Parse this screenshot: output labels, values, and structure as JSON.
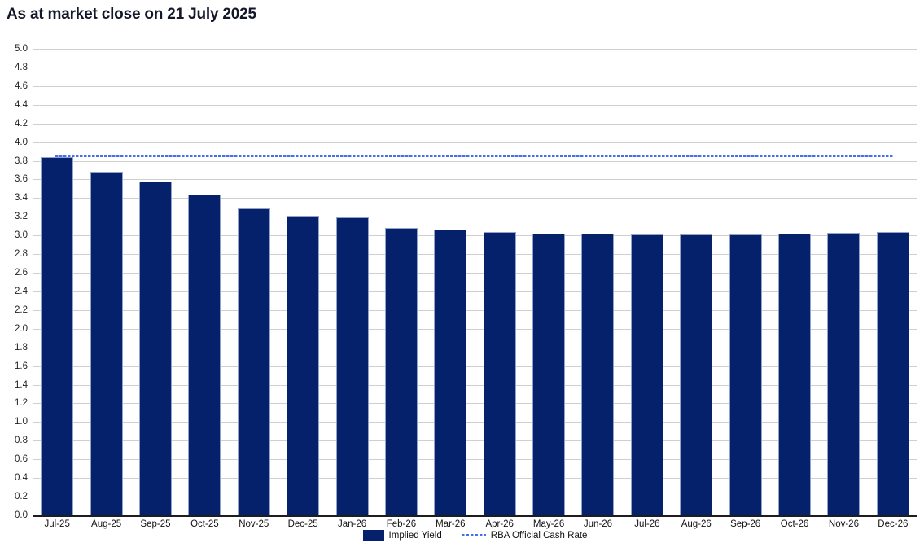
{
  "title": "As at market close on 21 July 2025",
  "chart_data": {
    "type": "bar",
    "title": "As at market close on 21 July 2025",
    "categories": [
      "Jul-25",
      "Aug-25",
      "Sep-25",
      "Oct-25",
      "Nov-25",
      "Dec-25",
      "Jan-26",
      "Feb-26",
      "Mar-26",
      "Apr-26",
      "May-26",
      "Jun-26",
      "Jul-26",
      "Aug-26",
      "Sep-26",
      "Oct-26",
      "Nov-26",
      "Dec-26"
    ],
    "series": [
      {
        "name": "Implied Yield",
        "type": "bar",
        "color": "#05216b",
        "values": [
          3.84,
          3.68,
          3.58,
          3.44,
          3.29,
          3.21,
          3.19,
          3.08,
          3.06,
          3.04,
          3.02,
          3.02,
          3.01,
          3.01,
          3.01,
          3.02,
          3.03,
          3.04
        ]
      },
      {
        "name": "RBA Official Cash Rate",
        "type": "dashed-line",
        "color": "#4470ef",
        "value": 3.85
      }
    ],
    "xlabel": "",
    "ylabel": "",
    "ylim": [
      0,
      5.0
    ],
    "ytick_step": 0.2,
    "ytick_format_decimals": 1,
    "grid": "horizontal",
    "legend_position": "bottom-center"
  },
  "colors": {
    "bar_fill": "#05216b",
    "bar_border": "#93a2c9",
    "dashed_line": "#4470ef",
    "gridline": "#cfcfcf",
    "axis_line": "#1d1d1d",
    "title_text": "#14162a",
    "tick_text": "#1f1f1f"
  }
}
